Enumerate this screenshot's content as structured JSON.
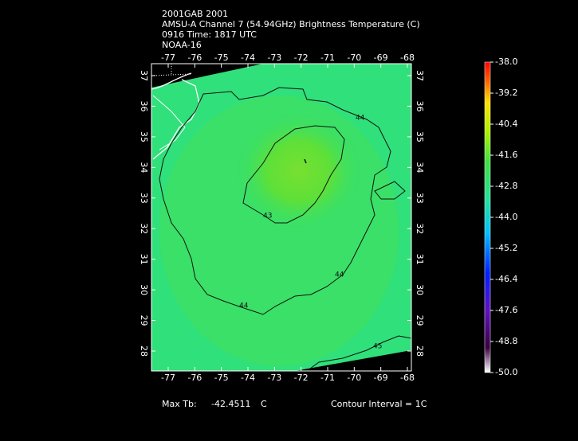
{
  "header": {
    "lines": [
      "2001GAB 2001",
      "AMSU-A Channel 7 (54.94GHz) Brightness Temperature (C)",
      "0916 Time: 1817 UTC",
      "NOAA-16"
    ]
  },
  "map": {
    "lon_range": [
      -77.63,
      -67.85
    ],
    "lat_range": [
      27.35,
      37.39
    ],
    "lon_ticks": [
      -77,
      -76,
      -75,
      -74,
      -73,
      -72,
      -71,
      -70,
      -69,
      -68
    ],
    "lat_ticks": [
      28,
      29,
      30,
      31,
      32,
      33,
      34,
      35,
      36,
      37
    ],
    "contour_labels": [
      "44",
      "43",
      "44",
      "44",
      "45"
    ]
  },
  "colorbar": {
    "range": [
      -50,
      -38
    ],
    "ticks": [
      {
        "value": -38,
        "label": "-38.0"
      },
      {
        "value": -39.2,
        "label": "-39.2"
      },
      {
        "value": -40.4,
        "label": "-40.4"
      },
      {
        "value": -41.6,
        "label": "-41.6"
      },
      {
        "value": -42.8,
        "label": "-42.8"
      },
      {
        "value": -44,
        "label": "-44.0"
      },
      {
        "value": -45.2,
        "label": "-45.2"
      },
      {
        "value": -46.4,
        "label": "-46.4"
      },
      {
        "value": -47.6,
        "label": "-47.6"
      },
      {
        "value": -48.8,
        "label": "-48.8"
      },
      {
        "value": -50,
        "label": "-50.0"
      }
    ]
  },
  "footer": {
    "max_label": "Max Tb:",
    "max_value": "-42.4511",
    "max_unit": "C",
    "interval": "Contour Interval = 1C"
  }
}
